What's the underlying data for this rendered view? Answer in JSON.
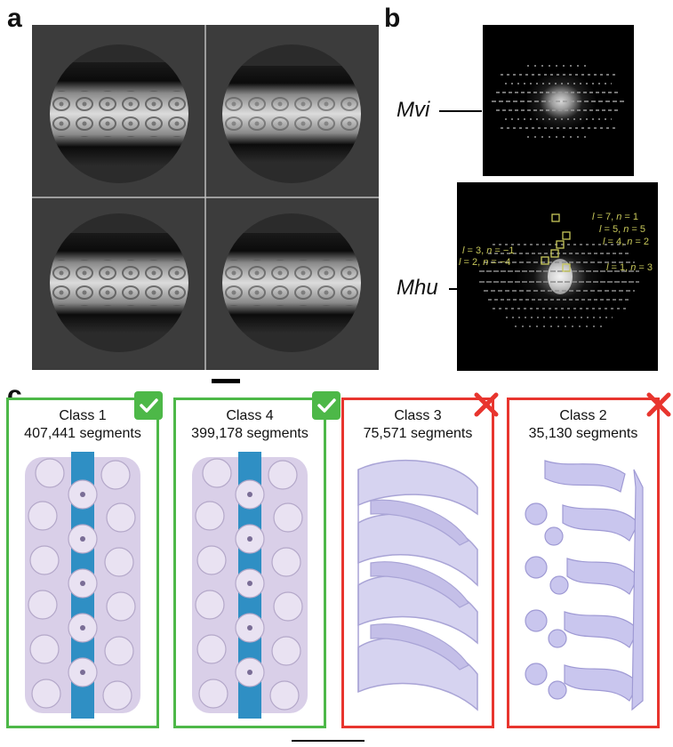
{
  "panels": {
    "a": {
      "letter": "a"
    },
    "b": {
      "letter": "b",
      "top_species": "Mvi",
      "bottom_species": "Mhu",
      "layer_line_labels": [
        {
          "l": "7",
          "n": "1"
        },
        {
          "l": "5",
          "n": "5"
        },
        {
          "l": "4",
          "n": "2"
        },
        {
          "l": "3",
          "n": "−1"
        },
        {
          "l": "2",
          "n": "−4"
        },
        {
          "l": "1",
          "n": "3"
        }
      ]
    },
    "c": {
      "letter": "c",
      "classes": [
        {
          "title": "Class 1",
          "segments": "407,441 segments",
          "status": "accepted",
          "border_color": "#4db848"
        },
        {
          "title": "Class 4",
          "segments": "399,178 segments",
          "status": "accepted",
          "border_color": "#4db848"
        },
        {
          "title": "Class 3",
          "segments": "75,571 segments",
          "status": "rejected",
          "border_color": "#e8352e"
        },
        {
          "title": "Class 2",
          "segments": "35,130 segments",
          "status": "rejected",
          "border_color": "#e8352e"
        }
      ]
    }
  },
  "colors": {
    "accept": "#4db848",
    "reject": "#e8352e",
    "density": "#d9cfe8",
    "density_blue_helix": "#b8b6e6",
    "core": "#2f8fc4",
    "fft_label": "#c8c85a"
  },
  "icons": {
    "accept": "check-icon",
    "reject": "x-icon"
  }
}
